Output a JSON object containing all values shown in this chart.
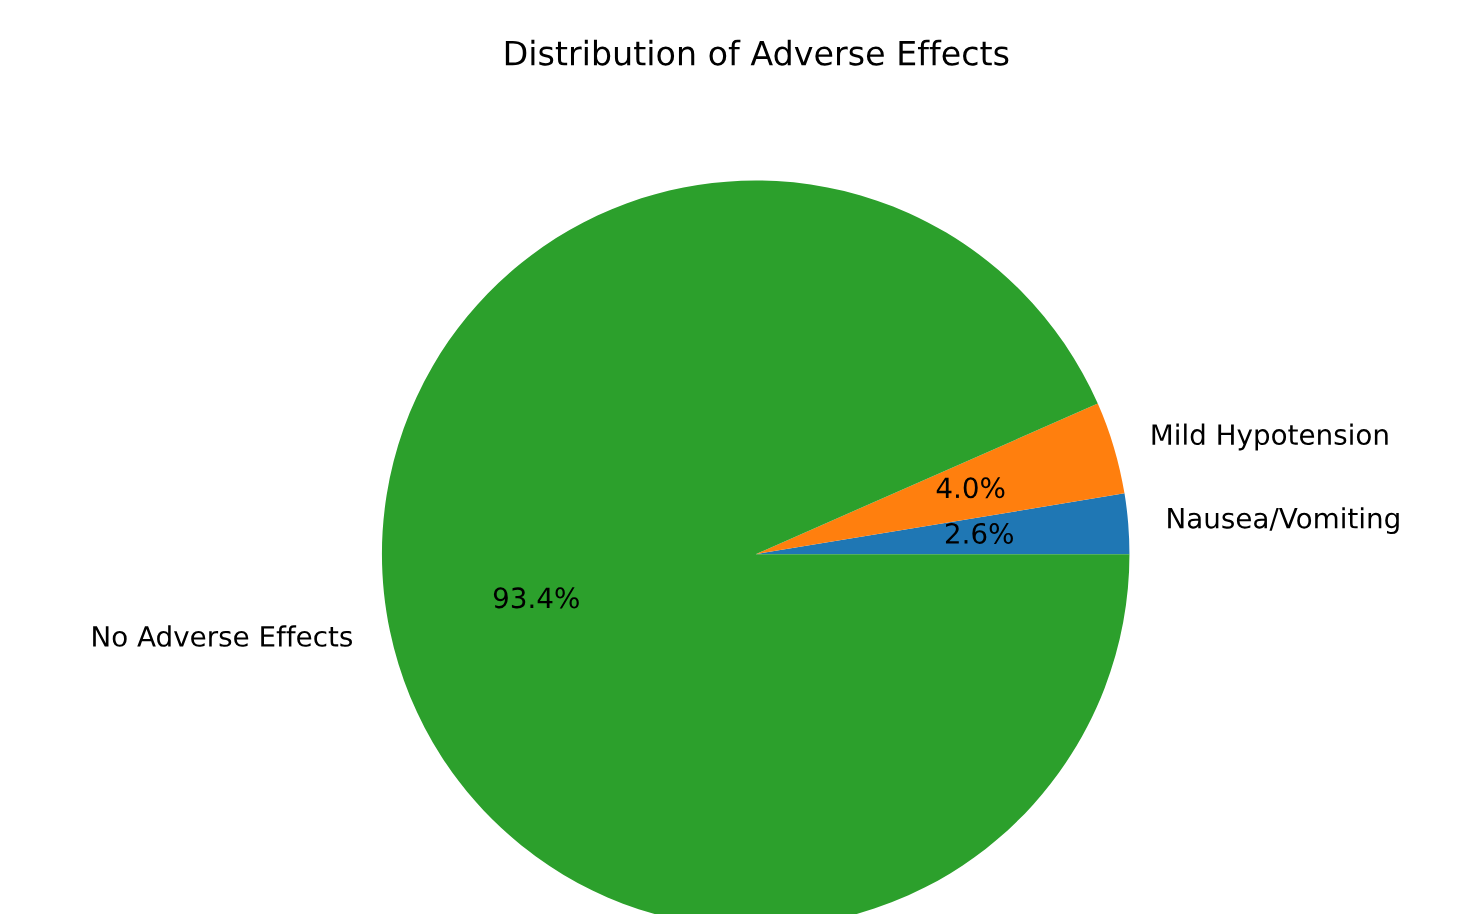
{
  "chart_data": {
    "type": "pie",
    "title": "Distribution of Adverse Effects",
    "categories": [
      "Nausea/Vomiting",
      "Mild Hypotension",
      "No Adverse Effects"
    ],
    "values": [
      2.6,
      4.0,
      93.4
    ],
    "colors": [
      "#1f77b4",
      "#ff7f0e",
      "#2ca02c"
    ],
    "value_labels": [
      "2.6%",
      "4.0%",
      "93.4%"
    ]
  }
}
